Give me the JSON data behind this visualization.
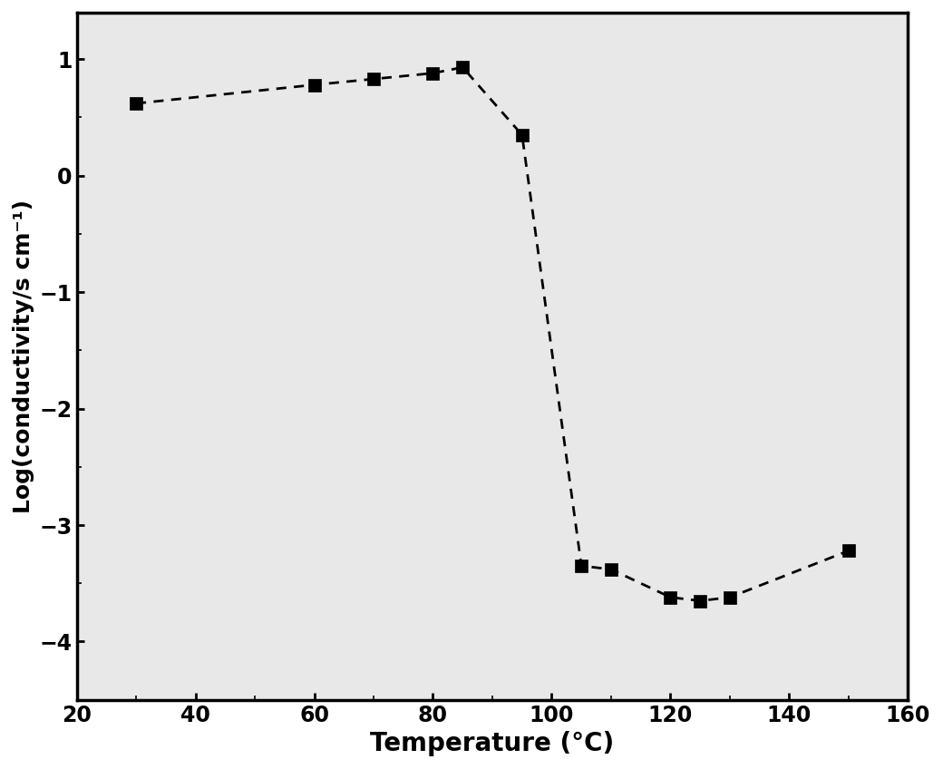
{
  "x": [
    30,
    60,
    70,
    80,
    85,
    95,
    105,
    110,
    120,
    125,
    130,
    150
  ],
  "y": [
    0.62,
    0.78,
    0.83,
    0.88,
    0.93,
    0.35,
    -3.35,
    -3.38,
    -3.62,
    -3.65,
    -3.62,
    -3.22
  ],
  "xlim": [
    20,
    160
  ],
  "ylim": [
    -4.5,
    1.4
  ],
  "xticks": [
    20,
    40,
    60,
    80,
    100,
    120,
    140,
    160
  ],
  "yticks": [
    -4,
    -3,
    -2,
    -1,
    0,
    1
  ],
  "xlabel": "Temperature (°C)",
  "ylabel": "Log(conductivity/s cm⁻¹)",
  "xlabel_fontsize": 20,
  "ylabel_fontsize": 18,
  "tick_fontsize": 17,
  "line_color": "#000000",
  "marker": "s",
  "marker_size": 10,
  "line_width": 2.0,
  "background_color": "#ffffff",
  "plot_bg_color": "#e8e8e8"
}
